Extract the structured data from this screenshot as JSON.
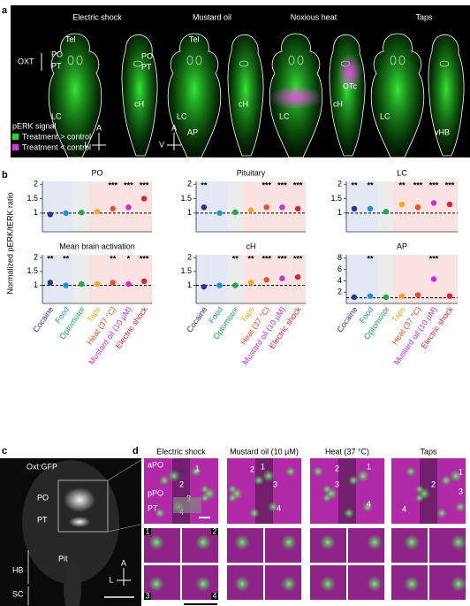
{
  "figure": {
    "a": {
      "label": "a",
      "titles": [
        "Electric shock",
        "Mustard oil",
        "Noxious heat",
        "Taps"
      ],
      "regions": [
        "OXT",
        "Tel",
        "PO",
        "PT",
        "LC",
        "PO",
        "PT",
        "cH",
        "Tel",
        "LC",
        "AP",
        "cH",
        "LC",
        "OTc",
        "cH",
        "LC",
        "vHB"
      ],
      "legend_title": "pERK signal",
      "legend": [
        {
          "label": "Treatment > control",
          "color": "#22dd22"
        },
        {
          "label": "Treatment < control",
          "color": "#e030e0"
        }
      ],
      "compass": [
        "A",
        "L",
        "A",
        "V"
      ]
    },
    "b": {
      "label": "b",
      "ylabel": "Normalized pERK/tERK ratio"
    },
    "c": {
      "label": "c",
      "title": "Oxt:GFP",
      "regions": [
        "PO",
        "PT",
        "Pit",
        "HB",
        "SC"
      ],
      "compass": [
        "A",
        "L"
      ]
    },
    "d": {
      "label": "d",
      "titles": [
        "Electric shock",
        "Mustard oil (10 µM)",
        "Heat (37 °C)",
        "Taps"
      ],
      "regions": [
        "aPO",
        "pPO",
        "PT"
      ],
      "cells": [
        "1",
        "2",
        "3",
        "4"
      ]
    }
  },
  "chart_data": [
    {
      "type": "dot",
      "title": "PO",
      "values": [
        0.95,
        1.0,
        1.02,
        1.05,
        1.15,
        1.2,
        1.5
      ],
      "annotations": [
        null,
        null,
        null,
        null,
        "***",
        "***",
        "***"
      ],
      "ylim": [
        0.35,
        2.1
      ],
      "yticks": [
        1,
        1.5,
        2
      ],
      "reference_line": 1,
      "colors": [
        "#2e3192",
        "#1f8fdc",
        "#22a84a",
        "#f5a623",
        "#f04e23",
        "#d22ad2",
        "#e0202a"
      ]
    },
    {
      "type": "dot",
      "title": "Pituitary",
      "values": [
        1.2,
        1.0,
        1.03,
        1.1,
        1.2,
        1.2,
        1.15
      ],
      "annotations": [
        "**",
        null,
        null,
        null,
        "***",
        "***",
        "***"
      ],
      "ylim": [
        0.35,
        2.1
      ],
      "yticks": [
        1,
        1.5,
        2
      ],
      "reference_line": 1,
      "colors": [
        "#2e3192",
        "#1f8fdc",
        "#22a84a",
        "#f5a623",
        "#f04e23",
        "#d22ad2",
        "#e0202a"
      ]
    },
    {
      "type": "dot",
      "title": "LC",
      "values": [
        1.15,
        1.15,
        1.05,
        1.3,
        1.2,
        1.35,
        1.3
      ],
      "annotations": [
        "**",
        "**",
        null,
        "**",
        "***",
        "***",
        "***"
      ],
      "ylim": [
        0.35,
        2.1
      ],
      "yticks": [
        1,
        1.5,
        2
      ],
      "reference_line": 1,
      "colors": [
        "#2e3192",
        "#1f8fdc",
        "#22a84a",
        "#f5a623",
        "#f04e23",
        "#d22ad2",
        "#e0202a"
      ]
    },
    {
      "type": "dot",
      "title": "Mean brain activation",
      "values": [
        1.1,
        1.0,
        1.05,
        1.05,
        1.1,
        1.05,
        1.15
      ],
      "annotations": [
        "**",
        "**",
        null,
        null,
        "**",
        "*",
        "***"
      ],
      "categories": [
        "Cocaine",
        "Food",
        "Optomotor",
        "Taps",
        "Heat (37 °C)",
        "Mustard oil (10 µM)",
        "Electric shock"
      ],
      "ylim": [
        0.35,
        2.1
      ],
      "yticks": [
        1,
        1.5,
        2
      ],
      "reference_line": 1,
      "colors": [
        "#2e3192",
        "#1f8fdc",
        "#22a84a",
        "#f5a623",
        "#f04e23",
        "#d22ad2",
        "#e0202a"
      ]
    },
    {
      "type": "dot",
      "title": "cH",
      "values": [
        0.95,
        1.0,
        1.0,
        1.1,
        1.2,
        1.25,
        1.3
      ],
      "annotations": [
        null,
        null,
        "**",
        "**",
        "***",
        "***",
        "***"
      ],
      "categories": [
        "Cocaine",
        "Food",
        "Optomotor",
        "Taps",
        "Heat (37 °C)",
        "Mustard oil (10 µM)",
        "Electric shock"
      ],
      "ylim": [
        0.35,
        2.1
      ],
      "yticks": [
        1,
        1.5,
        2
      ],
      "reference_line": 1,
      "colors": [
        "#2e3192",
        "#1f8fdc",
        "#22a84a",
        "#f5a623",
        "#f04e23",
        "#d22ad2",
        "#e0202a"
      ]
    },
    {
      "type": "dot",
      "title": "AP",
      "values": [
        1.1,
        1.3,
        1.1,
        1.3,
        1.5,
        4.3,
        1.3
      ],
      "annotations": [
        null,
        "**",
        null,
        null,
        null,
        "***",
        null
      ],
      "categories": [
        "Cocaine",
        "Food",
        "Optomotor",
        "Taps",
        "Heat (37 °C)",
        "Mustard oil (10 µM)",
        "Electric shock"
      ],
      "ylim": [
        0,
        8.6
      ],
      "yticks": [
        2,
        4,
        6,
        8
      ],
      "reference_line": 1,
      "colors": [
        "#2e3192",
        "#1f8fdc",
        "#22a84a",
        "#f5a623",
        "#f04e23",
        "#d22ad2",
        "#e0202a"
      ]
    }
  ]
}
